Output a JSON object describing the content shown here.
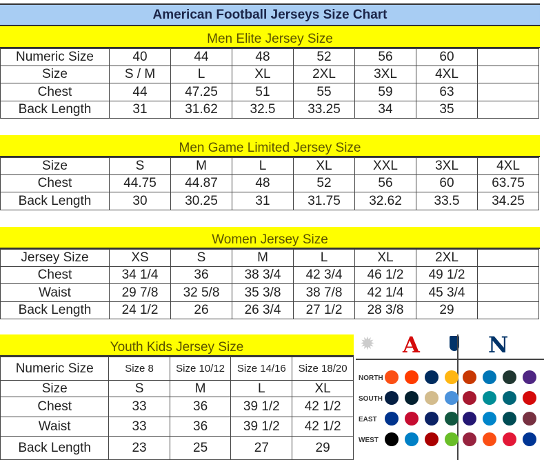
{
  "title": "American Football Jerseys Size Chart",
  "tables": [
    {
      "heading": "Men Elite Jersey Size",
      "rows": [
        [
          "Numeric Size",
          "40",
          "44",
          "48",
          "52",
          "56",
          "60",
          ""
        ],
        [
          "Size",
          "S / M",
          "L",
          "XL",
          "2XL",
          "3XL",
          "4XL",
          ""
        ],
        [
          "Chest",
          "44",
          "47.25",
          "51",
          "55",
          "59",
          "63",
          ""
        ],
        [
          "Back Length",
          "31",
          "31.62",
          "32.5",
          "33.25",
          "34",
          "35",
          ""
        ]
      ]
    },
    {
      "heading": "Men Game Limited Jersey Size",
      "rows": [
        [
          "Size",
          "S",
          "M",
          "L",
          "XL",
          "XXL",
          "3XL",
          "4XL"
        ],
        [
          "Chest",
          "44.75",
          "44.87",
          "48",
          "52",
          "56",
          "60",
          "63.75"
        ],
        [
          "Back Length",
          "30",
          "30.25",
          "31",
          "31.75",
          "32.62",
          "33.5",
          "34.25"
        ]
      ]
    },
    {
      "heading": "Women Jersey Size",
      "rows": [
        [
          "Jersey Size",
          "XS",
          "S",
          "M",
          "L",
          "XL",
          "2XL",
          ""
        ],
        [
          "Chest",
          "34 1/4",
          "36",
          "38 3/4",
          "42 3/4",
          "46 1/2",
          "49 1/2",
          ""
        ],
        [
          "Waist",
          "29 7/8",
          "32 5/8",
          "35 3/8",
          "38 7/8",
          "42 1/4",
          "45 3/4",
          ""
        ],
        [
          "Back Length",
          "24 1/2",
          "26",
          "26 3/4",
          "27 1/2",
          "28 3/8",
          "29",
          ""
        ]
      ]
    },
    {
      "heading": "Youth Kids Jersey Size",
      "rows": [
        [
          "Numeric Size",
          "Size 8",
          "Size 10/12",
          "Size 14/16",
          "Size 18/20"
        ],
        [
          "Size",
          "S",
          "M",
          "L",
          "XL"
        ],
        [
          "Chest",
          "33",
          "36",
          "39 1/2",
          "42 1/2"
        ],
        [
          "Waist",
          "33",
          "36",
          "39 1/2",
          "42 1/2"
        ],
        [
          "Back Length",
          "23",
          "25",
          "27",
          "29"
        ]
      ]
    }
  ],
  "logos": {
    "division_labels": [
      "NORTH",
      "SOUTH",
      "EAST",
      "WEST"
    ],
    "afc_logo_text": "A",
    "nfc_logo_text": "N",
    "nfl_logo_text": "NFL",
    "colors": {
      "afc": "#d50a0a",
      "nfc": "#013369"
    },
    "afc": [
      [
        "#fb4f14",
        "#ff3c00",
        "#002c5f",
        "#ffb612"
      ],
      [
        "#041e42",
        "#03202f",
        "#d3bc8d",
        "#4b92db"
      ],
      [
        "#00338d",
        "#c60c30",
        "#0b2265",
        "#125740"
      ],
      [
        "#000000",
        "#0080c6",
        "#aa0000",
        "#69be28"
      ]
    ],
    "nfc": [
      [
        "#c83803",
        "#0076b6",
        "#203731",
        "#4f2683"
      ],
      [
        "#a71930",
        "#008e97",
        "#006778",
        "#d50a0a"
      ],
      [
        "#241773",
        "#0085ca",
        "#004c54",
        "#773141"
      ],
      [
        "#97233f",
        "#fb4f14",
        "#e31837",
        "#003594"
      ]
    ]
  }
}
